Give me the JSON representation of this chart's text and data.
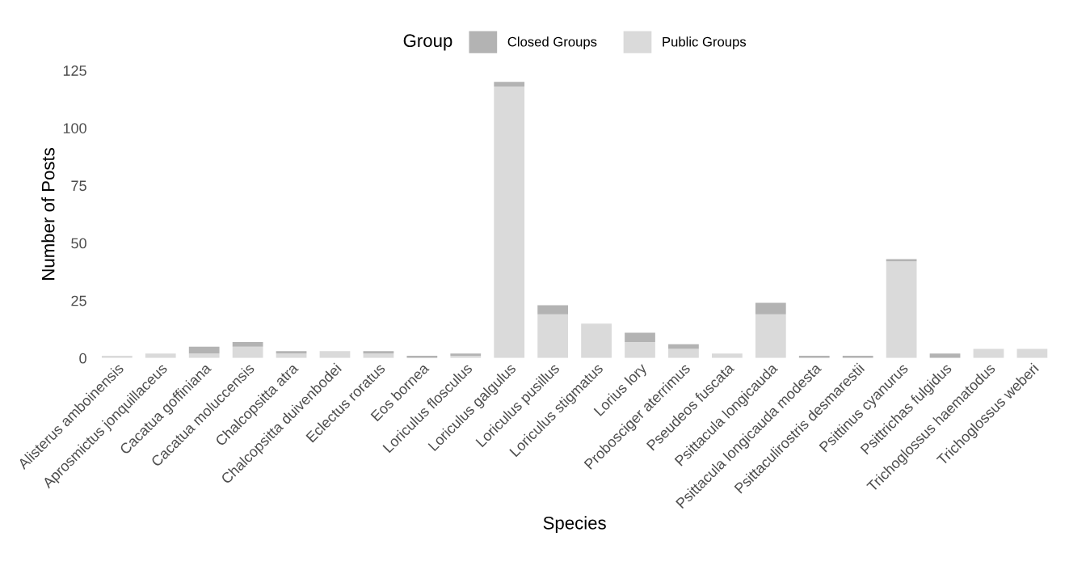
{
  "chart_data": {
    "type": "bar",
    "stacked": true,
    "xlabel": "Species",
    "ylabel": "Number of Posts",
    "legend_title": "Group",
    "legend": "top",
    "categories": [
      "Alisterus amboinensis",
      "Aprosmictus jonquillaceus",
      "Cacatua goffiniana",
      "Cacatua moluccensis",
      "Chalcopsitta atra",
      "Chalcopsitta duivenbodei",
      "Eclectus roratus",
      "Eos bornea",
      "Loriculus flosculus",
      "Loriculus galgulus",
      "Loriculus pusillus",
      "Loriculus stigmatus",
      "Lorius lory",
      "Probosciger aterrimus",
      "Pseudeos fuscata",
      "Psittacula longicauda",
      "Psittacula longicauda modesta",
      "Psittaculirostris desmarestii",
      "Psittinus cyanurus",
      "Psittrichas fulgidus",
      "Trichoglossus haematodus",
      "Trichoglossus weberi"
    ],
    "series": [
      {
        "name": "Public Groups",
        "color": "#dadada",
        "values": [
          1,
          2,
          2,
          5,
          2,
          3,
          2,
          0,
          1,
          118,
          19,
          15,
          7,
          4,
          2,
          19,
          0,
          0,
          42,
          0,
          4,
          4
        ]
      },
      {
        "name": "Closed Groups",
        "color": "#b3b3b3",
        "values": [
          0,
          0,
          3,
          2,
          1,
          0,
          1,
          1,
          1,
          2,
          4,
          0,
          4,
          2,
          0,
          5,
          1,
          1,
          1,
          2,
          0,
          0
        ]
      }
    ],
    "ylim": [
      0,
      125
    ],
    "yticks": [
      0,
      25,
      50,
      75,
      100,
      125
    ],
    "grid": false
  }
}
